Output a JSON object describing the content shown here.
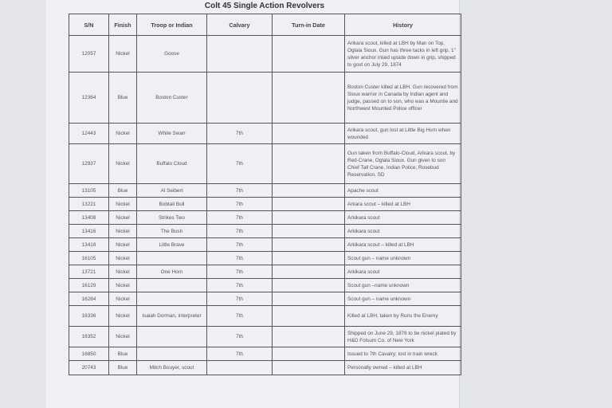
{
  "title": "Colt 45 Single Action Revolvers",
  "columns": [
    "S/N",
    "Finish",
    "Troop or Indian",
    "Calvary",
    "Turn-in Date",
    "History"
  ],
  "rows": [
    {
      "sn": "12057",
      "finish": "Nickel",
      "troop": "Goose",
      "calvary": "",
      "turnin": "",
      "history": "Arikara scout, killed at LBH by Man on Top, Oglala Sioux. Gun has three tacks in left grip, 1\" silver anchor inlaid upside down in grip, shipped to govt on July 29, 1874"
    },
    {
      "sn": "12364",
      "finish": "Blue",
      "troop": "Boston Custer",
      "calvary": "",
      "turnin": "",
      "history": "Boston Custer killed at LBH. Gun recovered from Sioux warrior in Canada by Indian agent and judge, passed on to son, who was a Mountie and Northwest Mounted Police officer"
    },
    {
      "sn": "12443",
      "finish": "Nickel",
      "troop": "White Swan",
      "calvary": "7th",
      "turnin": "",
      "history": "Arikara scout, gun lost at Little Big Horn when wounded"
    },
    {
      "sn": "12937",
      "finish": "Nickel",
      "troop": "Buffalo Cloud",
      "calvary": "7th",
      "turnin": "",
      "history": "Gun taken from Buffalo-Cloud, Arikara scout, by Red-Crane, Oglala Sioux. Gun given to son Chief Tall Crane, Indian Police, Rosebud Reservation, SD"
    },
    {
      "sn": "13105",
      "finish": "Blue",
      "troop": "Al Seibert",
      "calvary": "7th",
      "turnin": "",
      "history": "Apache scout"
    },
    {
      "sn": "13221",
      "finish": "Nickel",
      "troop": "Bobtail Bull",
      "calvary": "7th",
      "turnin": "",
      "history": "Arkara scout – killed at LBH"
    },
    {
      "sn": "13408",
      "finish": "Nickel",
      "troop": "Strikes Two",
      "calvary": "7th",
      "turnin": "",
      "history": "Arkikara scout"
    },
    {
      "sn": "13416",
      "finish": "Nickel",
      "troop": "The Bush",
      "calvary": "7th",
      "turnin": "",
      "history": "Arkikara scout"
    },
    {
      "sn": "13418",
      "finish": "Nickel",
      "troop": "Little Brave",
      "calvary": "7th",
      "turnin": "",
      "history": "Arkikara scout – killed at LBH"
    },
    {
      "sn": "16105",
      "finish": "Nickel",
      "troop": "",
      "calvary": "7th",
      "turnin": "",
      "history": "Scout gun – name unknown"
    },
    {
      "sn": "13721",
      "finish": "Nickel",
      "troop": "One Horn",
      "calvary": "7th",
      "turnin": "",
      "history": "Arkikara scout"
    },
    {
      "sn": "16129",
      "finish": "Nickel",
      "troop": "",
      "calvary": "7th",
      "turnin": "",
      "history": "Scout gun –name unknown"
    },
    {
      "sn": "16284",
      "finish": "Nickel",
      "troop": "",
      "calvary": "7th",
      "turnin": "",
      "history": "Scout gun – name unknown"
    },
    {
      "sn": "16336",
      "finish": "Nickel",
      "troop": "Isaiah Dorman, interpreter",
      "calvary": "7th",
      "turnin": "",
      "history": "Killed at LBH, taken by Runs the Enemy"
    },
    {
      "sn": "16352",
      "finish": "Nickel",
      "troop": "",
      "calvary": "7th",
      "turnin": "",
      "history": "Shipped on June 29, 1876 to be nickel plated by H&D Folsum Co. of New York"
    },
    {
      "sn": "16850",
      "finish": "Blue",
      "troop": "",
      "calvary": "7th",
      "turnin": "",
      "history": "Issued to 7th Cavalry; lost in train wreck"
    },
    {
      "sn": "20743",
      "finish": "Blue",
      "troop": "Mitch Bouyer, scout",
      "calvary": "",
      "turnin": "",
      "history": "Personally owned – killed at LBH"
    }
  ]
}
